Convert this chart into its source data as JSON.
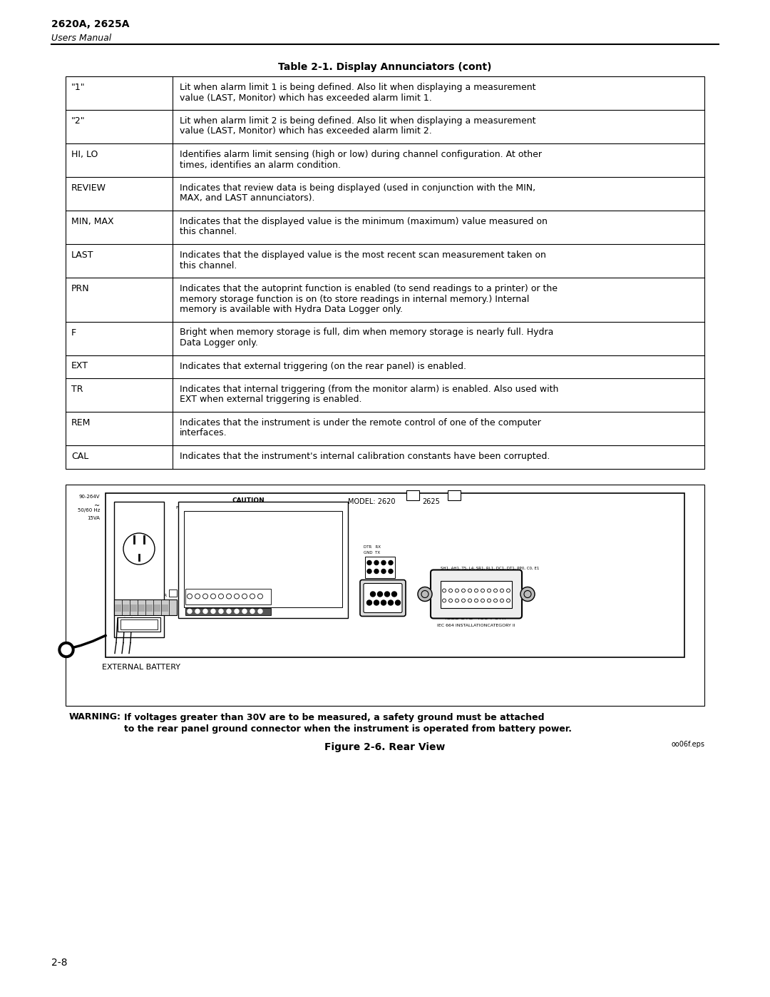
{
  "page_title_bold": "2620A, 2625A",
  "page_title_italic": "Users Manual",
  "table_title": "Table 2-1. Display Annunciators (cont)",
  "page_number": "2-8",
  "bg_color": "#ffffff",
  "table_rows": [
    {
      "label": "\"1\"",
      "text": "Lit when alarm limit 1 is being defined. Also lit when displaying a measurement\nvalue (LAST, Monitor) which has exceeded alarm limit 1."
    },
    {
      "label": "\"2\"",
      "text": "Lit when alarm limit 2 is being defined. Also lit when displaying a measurement\nvalue (LAST, Monitor) which has exceeded alarm limit 2."
    },
    {
      "label": "HI, LO",
      "text": "Identifies alarm limit sensing (high or low) during channel configuration. At other\ntimes, identifies an alarm condition."
    },
    {
      "label": "REVIEW",
      "text": "Indicates that review data is being displayed (used in conjunction with the MIN,\nMAX, and LAST annunciators)."
    },
    {
      "label": "MIN, MAX",
      "text": "Indicates that the displayed value is the minimum (maximum) value measured on\nthis channel."
    },
    {
      "label": "LAST",
      "text": "Indicates that the displayed value is the most recent scan measurement taken on\nthis channel."
    },
    {
      "label": "PRN",
      "text": "Indicates that the autoprint function is enabled (to send readings to a printer) or the\nmemory storage function is on (to store readings in internal memory.) Internal\nmemory is available with Hydra Data Logger only."
    },
    {
      "label": "F",
      "text": "Bright when memory storage is full, dim when memory storage is nearly full. Hydra\nData Logger only."
    },
    {
      "label": "EXT",
      "text": "Indicates that external triggering (on the rear panel) is enabled."
    },
    {
      "label": "TR",
      "text": "Indicates that internal triggering (from the monitor alarm) is enabled. Also used with\nEXT when external triggering is enabled."
    },
    {
      "label": "REM",
      "text": "Indicates that the instrument is under the remote control of one of the computer\ninterfaces."
    },
    {
      "label": "CAL",
      "text": "Indicates that the instrument's internal calibration constants have been corrupted."
    }
  ],
  "figure_caption": "Figure 2-6. Rear View",
  "figure_filename": "oo06f.eps",
  "warning_line1": "WARNING:   If voltages greater than 30V are to be measured, a safety ground must be attached",
  "warning_line2": "to the rear panel ground connector when the instrument is operated from battery power.",
  "external_battery_label": "EXTERNAL BATTERY"
}
